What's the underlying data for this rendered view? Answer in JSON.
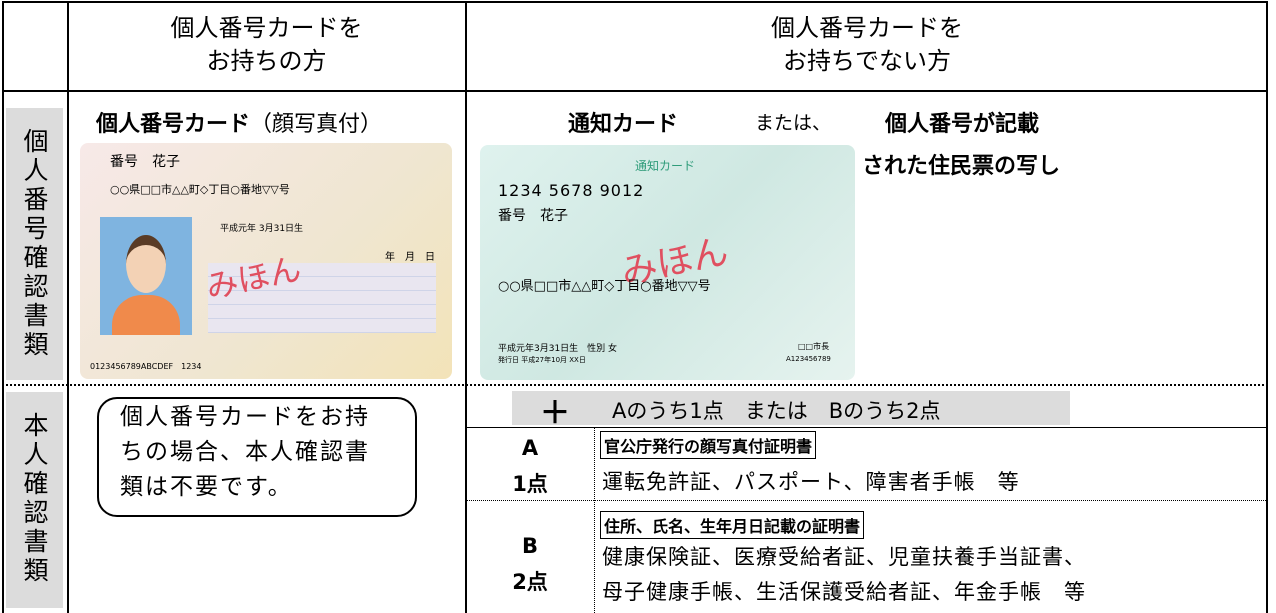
{
  "header": {
    "col_with_card": [
      "個人番号カードを",
      "お持ちの方"
    ],
    "col_without_card": [
      "個人番号カードを",
      "お持ちでない方"
    ]
  },
  "number_row": {
    "label": "個人番号確認書類",
    "with_card": {
      "title_bold": "個人番号カード",
      "title_rest": "（顔写真付）",
      "card": {
        "name": "番号　花子",
        "address": "○○県□□市△△町◇丁目○番地▽▽号",
        "birth": "平成元年 3月31日生",
        "sample": "みほん",
        "date": "年　月　日",
        "code": "0123456789ABCDEF　1234"
      }
    },
    "without_card": {
      "option1": "通知カード",
      "or": "または、",
      "option2_line1": "個人番号が記載",
      "option2_line2": "された住民票の写し",
      "card": {
        "title": "通知カード",
        "number": "1234 5678 9012",
        "name": "番号　花子",
        "sample": "みほん",
        "address": "○○県□□市△△町◇丁目○番地▽▽号",
        "birth": "平成元年3月31日生　性別 女",
        "issued": "発行日 平成27年10月 XX日",
        "mayor": "□□市長",
        "serial": "A123456789"
      }
    }
  },
  "identity_row": {
    "label": "本人確認書類",
    "with_card": {
      "note_lines": [
        "個人番号カードをお持",
        "ちの場合、本人確認書",
        "類は不要です。"
      ]
    },
    "without_card": {
      "plus": "＋",
      "rule": "Aのうち1点　または　Bのうち2点",
      "a": {
        "letter": "A",
        "points": "1点",
        "title": "官公庁発行の顔写真付証明書",
        "items": [
          "運転免許証、パスポート、障害者手帳　等"
        ]
      },
      "b": {
        "letter": "B",
        "points": "2点",
        "title": "住所、氏名、生年月日記載の証明書",
        "items": [
          "健康保険証、医療受給者証、児童扶養手当証書、",
          "母子健康手帳、生活保護受給者証、年金手帳　等"
        ]
      }
    }
  }
}
